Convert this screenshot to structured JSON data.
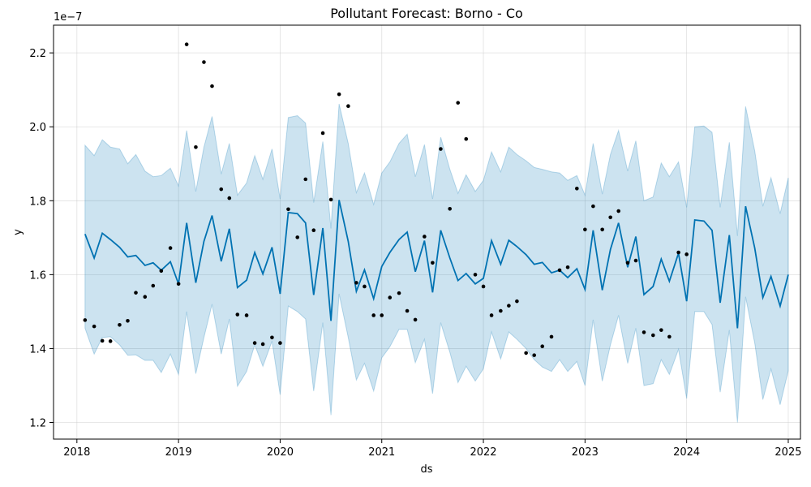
{
  "chart_data": {
    "type": "line",
    "title": "Pollutant Forecast: Borno - Co",
    "xlabel": "ds",
    "ylabel": "y",
    "y_offset_text": "1e−7",
    "y_scale_exponent": -7,
    "xlim": [
      2017.77,
      2025.12
    ],
    "ylim": [
      1.155,
      2.275
    ],
    "x_ticks": [
      2018,
      2019,
      2020,
      2021,
      2022,
      2023,
      2024,
      2025
    ],
    "x_tick_labels": [
      "2018",
      "2019",
      "2020",
      "2021",
      "2022",
      "2023",
      "2024",
      "2025"
    ],
    "y_ticks": [
      1.2,
      1.4,
      1.6,
      1.8,
      2.0,
      2.2
    ],
    "y_tick_labels": [
      "1.2",
      "1.4",
      "1.6",
      "1.8",
      "2.0",
      "2.2"
    ],
    "grid": true,
    "colors": {
      "forecast": "#0072B2",
      "interval": "#0072B2",
      "observed": "#000000",
      "grid": "#cccccc"
    },
    "forecast": {
      "x": [
        2018.08,
        2018.17,
        2018.25,
        2018.33,
        2018.42,
        2018.5,
        2018.58,
        2018.67,
        2018.75,
        2018.83,
        2018.92,
        2019.0,
        2019.08,
        2019.17,
        2019.25,
        2019.33,
        2019.42,
        2019.5,
        2019.58,
        2019.67,
        2019.75,
        2019.83,
        2019.92,
        2020.0,
        2020.08,
        2020.17,
        2020.25,
        2020.33,
        2020.42,
        2020.5,
        2020.58,
        2020.67,
        2020.75,
        2020.83,
        2020.92,
        2021.0,
        2021.08,
        2021.17,
        2021.25,
        2021.33,
        2021.42,
        2021.5,
        2021.58,
        2021.67,
        2021.75,
        2021.83,
        2021.92,
        2022.0,
        2022.08,
        2022.17,
        2022.25,
        2022.33,
        2022.42,
        2022.5,
        2022.58,
        2022.67,
        2022.75,
        2022.83,
        2022.92,
        2023.0,
        2023.08,
        2023.17,
        2023.25,
        2023.33,
        2023.42,
        2023.5,
        2023.58,
        2023.67,
        2023.75,
        2023.83,
        2023.92,
        2024.0,
        2024.08,
        2024.17,
        2024.25,
        2024.33,
        2024.42,
        2024.5,
        2024.58,
        2024.67,
        2024.75,
        2024.83,
        2024.92,
        2025.0
      ],
      "yhat": [
        1.71,
        1.645,
        1.712,
        1.695,
        1.674,
        1.648,
        1.652,
        1.625,
        1.632,
        1.612,
        1.635,
        1.575,
        1.74,
        1.578,
        1.69,
        1.76,
        1.636,
        1.724,
        1.565,
        1.585,
        1.66,
        1.602,
        1.674,
        1.548,
        1.768,
        1.765,
        1.74,
        1.545,
        1.726,
        1.475,
        1.802,
        1.69,
        1.555,
        1.613,
        1.535,
        1.622,
        1.66,
        1.695,
        1.715,
        1.608,
        1.692,
        1.552,
        1.72,
        1.645,
        1.584,
        1.603,
        1.575,
        1.59,
        1.692,
        1.628,
        1.693,
        1.676,
        1.654,
        1.628,
        1.633,
        1.605,
        1.612,
        1.592,
        1.616,
        1.56,
        1.72,
        1.558,
        1.668,
        1.74,
        1.62,
        1.703,
        1.546,
        1.568,
        1.642,
        1.582,
        1.658,
        1.528,
        1.748,
        1.745,
        1.72,
        1.524,
        1.707,
        1.455,
        1.785,
        1.672,
        1.538,
        1.595,
        1.515,
        1.6
      ],
      "lower": [
        1.455,
        1.385,
        1.43,
        1.432,
        1.41,
        1.382,
        1.383,
        1.368,
        1.368,
        1.335,
        1.385,
        1.33,
        1.5,
        1.332,
        1.43,
        1.52,
        1.385,
        1.48,
        1.298,
        1.338,
        1.41,
        1.352,
        1.42,
        1.275,
        1.515,
        1.5,
        1.48,
        1.285,
        1.47,
        1.22,
        1.548,
        1.43,
        1.315,
        1.36,
        1.285,
        1.375,
        1.405,
        1.452,
        1.452,
        1.362,
        1.425,
        1.278,
        1.47,
        1.39,
        1.308,
        1.352,
        1.312,
        1.345,
        1.445,
        1.372,
        1.445,
        1.425,
        1.4,
        1.37,
        1.35,
        1.338,
        1.37,
        1.338,
        1.365,
        1.3,
        1.478,
        1.312,
        1.41,
        1.49,
        1.36,
        1.455,
        1.3,
        1.305,
        1.37,
        1.33,
        1.398,
        1.265,
        1.5,
        1.5,
        1.465,
        1.282,
        1.45,
        1.2,
        1.54,
        1.415,
        1.262,
        1.345,
        1.248,
        1.34
      ],
      "upper": [
        1.95,
        1.922,
        1.965,
        1.945,
        1.94,
        1.9,
        1.925,
        1.88,
        1.865,
        1.868,
        1.888,
        1.84,
        1.99,
        1.825,
        1.945,
        2.028,
        1.872,
        1.955,
        1.815,
        1.848,
        1.922,
        1.858,
        1.94,
        1.805,
        2.025,
        2.03,
        2.01,
        1.795,
        1.96,
        1.725,
        2.062,
        1.955,
        1.822,
        1.875,
        1.79,
        1.875,
        1.905,
        1.955,
        1.98,
        1.865,
        1.952,
        1.805,
        1.972,
        1.885,
        1.82,
        1.87,
        1.825,
        1.855,
        1.932,
        1.878,
        1.945,
        1.925,
        1.908,
        1.89,
        1.885,
        1.878,
        1.875,
        1.855,
        1.868,
        1.815,
        1.955,
        1.818,
        1.925,
        1.99,
        1.88,
        1.962,
        1.8,
        1.81,
        1.902,
        1.865,
        1.905,
        1.782,
        2.0,
        2.002,
        1.985,
        1.782,
        1.958,
        1.705,
        2.055,
        1.935,
        1.785,
        1.862,
        1.765,
        1.862
      ]
    },
    "observed": {
      "x": [
        2018.08,
        2018.17,
        2018.25,
        2018.33,
        2018.42,
        2018.5,
        2018.58,
        2018.67,
        2018.75,
        2018.83,
        2018.92,
        2019.0,
        2019.08,
        2019.17,
        2019.25,
        2019.33,
        2019.42,
        2019.5,
        2019.58,
        2019.67,
        2019.75,
        2019.83,
        2019.92,
        2020.0,
        2020.08,
        2020.17,
        2020.25,
        2020.33,
        2020.42,
        2020.5,
        2020.58,
        2020.67,
        2020.75,
        2020.83,
        2020.92,
        2021.0,
        2021.08,
        2021.17,
        2021.25,
        2021.33,
        2021.42,
        2021.5,
        2021.58,
        2021.67,
        2021.75,
        2021.83,
        2021.92,
        2022.0,
        2022.08,
        2022.17,
        2022.25,
        2022.33,
        2022.42,
        2022.5,
        2022.58,
        2022.67,
        2022.75,
        2022.83,
        2022.92,
        2023.0,
        2023.08,
        2023.17,
        2023.25,
        2023.33,
        2023.42,
        2023.5,
        2023.58,
        2023.67,
        2023.75,
        2023.83,
        2023.92,
        2024.0
      ],
      "y": [
        1.477,
        1.46,
        1.421,
        1.42,
        1.464,
        1.475,
        1.551,
        1.54,
        1.57,
        1.61,
        1.672,
        1.575,
        2.223,
        1.945,
        2.175,
        2.11,
        1.831,
        1.807,
        1.492,
        1.49,
        1.415,
        1.412,
        1.43,
        1.415,
        1.777,
        1.701,
        1.858,
        1.72,
        1.983,
        1.803,
        2.088,
        2.056,
        1.578,
        1.568,
        1.49,
        1.49,
        1.538,
        1.55,
        1.502,
        1.478,
        1.703,
        1.632,
        1.94,
        1.778,
        2.065,
        1.967,
        1.6,
        1.568,
        1.49,
        1.502,
        1.516,
        1.528,
        1.388,
        1.382,
        1.406,
        1.432,
        1.612,
        1.62,
        1.833,
        1.722,
        1.785,
        1.722,
        1.755,
        1.772,
        1.632,
        1.638,
        1.444,
        1.436,
        1.45,
        1.432,
        1.66,
        1.655
      ]
    }
  }
}
